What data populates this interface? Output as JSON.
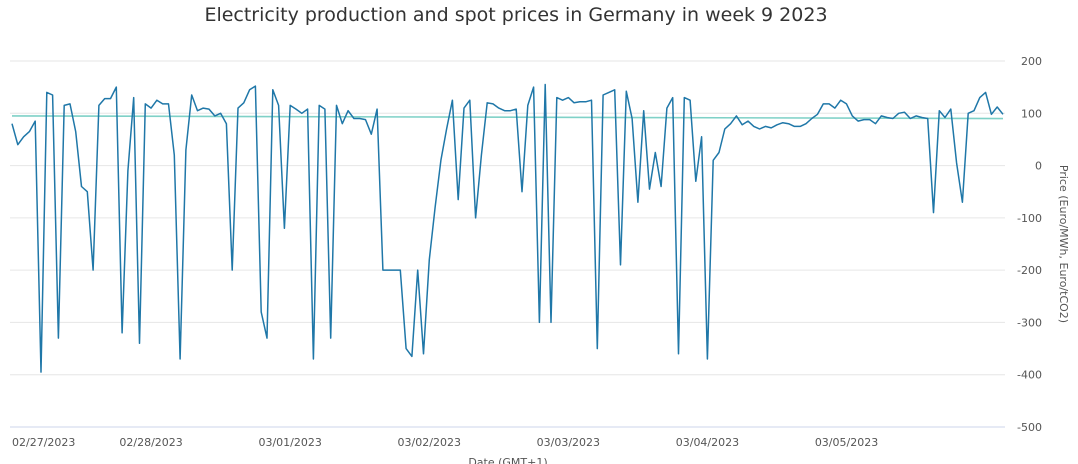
{
  "chart_data": {
    "type": "line",
    "title": "Electricity production and spot prices in Germany in week 9 2023",
    "xlabel": "Date (GMT+1)",
    "ylabel": "Price (Euro/MWh, Euro/tCO2)",
    "ylim": [
      -500,
      200
    ],
    "yticks": [
      200,
      100,
      0,
      -100,
      -200,
      -300,
      -400,
      -500
    ],
    "grid": true,
    "x_tick_labels": [
      "02/27/2023",
      "02/28/2023",
      "03/01/2023",
      "03/02/2023",
      "03/03/2023",
      "03/04/2023",
      "03/05/2023"
    ],
    "x_start": "2023-02-27",
    "step_hours": 1,
    "colors": {
      "price": "#1f77a8",
      "reference": "#7fd1c7"
    },
    "series": [
      {
        "values": [
          80,
          40,
          55,
          65,
          85,
          -395,
          140,
          135,
          -330,
          115,
          118,
          65,
          -40,
          -50,
          -200,
          115,
          128,
          128,
          150,
          -320,
          -10,
          130,
          -340,
          118,
          110,
          125,
          118,
          118,
          20,
          -370,
          30,
          135,
          105,
          110,
          108,
          95,
          100,
          80,
          -200,
          110,
          120,
          145,
          152,
          -280,
          -330,
          145,
          115,
          -120,
          115,
          108,
          100,
          108,
          -370,
          115,
          108,
          -330,
          115,
          80,
          105,
          90,
          90,
          88,
          60,
          108,
          -200,
          -200,
          -200,
          -200,
          -350,
          -365,
          -200,
          -360,
          -180,
          -80,
          10,
          70,
          125,
          -65,
          110,
          125,
          -100,
          20,
          120,
          118,
          110,
          105,
          105,
          108,
          -50,
          115,
          150,
          -300,
          155,
          -300,
          130,
          125,
          130,
          120,
          122,
          122,
          125,
          -350,
          135,
          140,
          145,
          -190,
          142,
          90,
          -70,
          105,
          -45,
          25,
          -40,
          110,
          130,
          -360,
          130,
          125,
          -30,
          55,
          -370,
          10,
          25,
          70,
          80,
          95,
          78,
          85,
          75,
          70,
          75,
          72,
          78,
          82,
          80,
          75,
          75,
          80,
          90,
          98,
          118,
          118,
          110,
          125,
          118,
          95,
          85,
          88,
          88,
          80,
          95,
          92,
          90,
          100,
          102,
          90,
          95,
          92,
          90,
          -90,
          105,
          92,
          108,
          5,
          -70,
          100,
          105,
          130,
          140,
          98,
          112,
          98
        ]
      },
      {
        "values": [
          95,
          90
        ]
      }
    ]
  }
}
